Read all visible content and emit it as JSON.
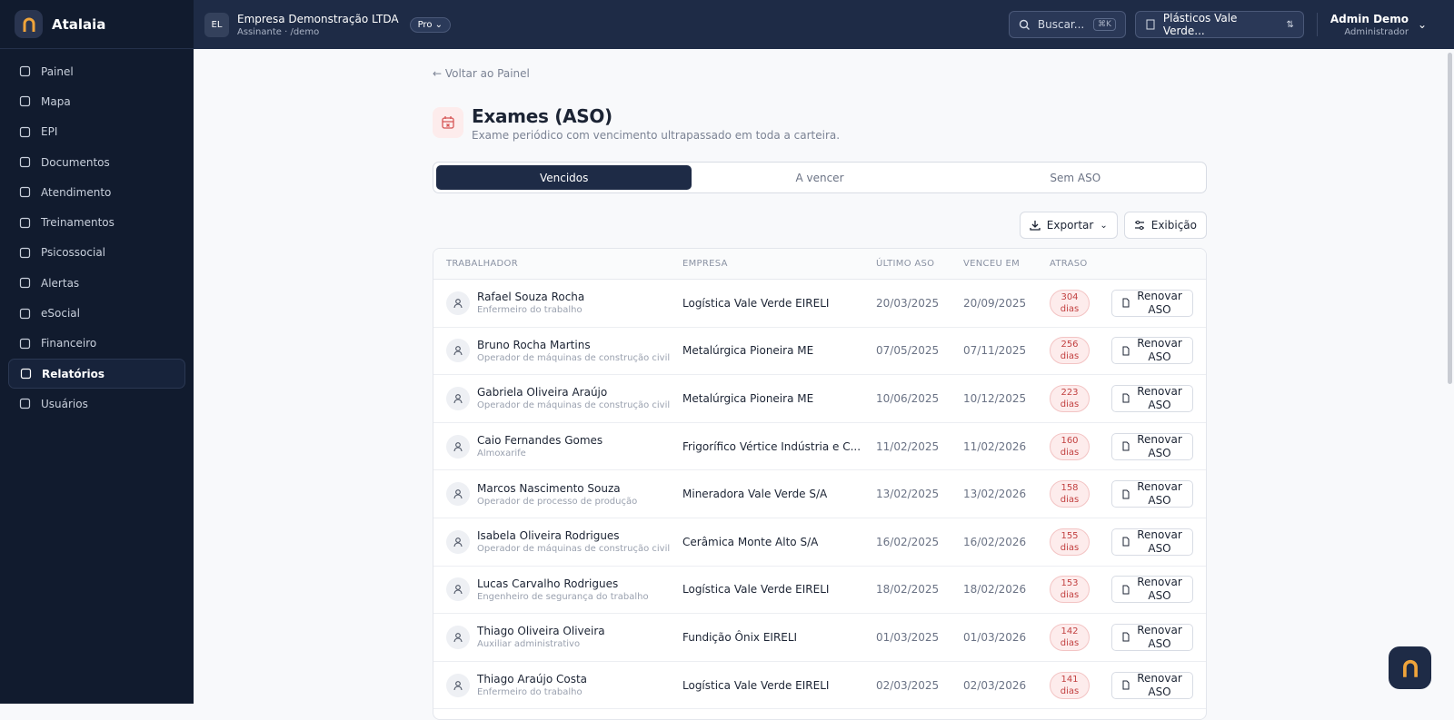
{
  "sidebar": {
    "brand": "Atalaia",
    "active": 10,
    "nav": [
      "Painel",
      "Mapa",
      "EPI",
      "Documentos",
      "Atendimento",
      "Treinamentos",
      "Psicossocial",
      "Alertas",
      "eSocial",
      "Financeiro",
      "Relatórios",
      "Usuários"
    ]
  },
  "topbar": {
    "initials": "EL",
    "company": "Empresa Demonstração LTDA",
    "company_sub": "Assinante · /demo",
    "plan": "Pro",
    "search": "Buscar...",
    "shortcut": "⌘K",
    "org": "Plásticos Vale Verde...",
    "user": "Admin Demo",
    "role": "Administrador"
  },
  "header": {
    "back": "Voltar ao Painel",
    "title": "Exames (ASO)",
    "subtitle": "Exame periódico com vencimento ultrapassado em toda a carteira."
  },
  "tabs": {
    "items": [
      "Vencidos",
      "A vencer",
      "Sem ASO"
    ],
    "active": 0
  },
  "toolbar": {
    "export": "Exportar",
    "view": "Exibição"
  },
  "table": {
    "columns": [
      "TRABALHADOR",
      "EMPRESA",
      "ÚLTIMO ASO",
      "VENCEU EM",
      "ATRASO"
    ],
    "action": "Renovar ASO",
    "rows": [
      {
        "name": "Rafael Souza Rocha",
        "role": "Enfermeiro do trabalho",
        "company": "Logística Vale Verde EIRELI",
        "last": "20/03/2025",
        "due": "20/09/2025",
        "delay": "304 dias"
      },
      {
        "name": "Bruno Rocha Martins",
        "role": "Operador de máquinas de construção civil",
        "company": "Metalúrgica Pioneira ME",
        "last": "07/05/2025",
        "due": "07/11/2025",
        "delay": "256 dias"
      },
      {
        "name": "Gabriela Oliveira Araújo",
        "role": "Operador de máquinas de construção civil",
        "company": "Metalúrgica Pioneira ME",
        "last": "10/06/2025",
        "due": "10/12/2025",
        "delay": "223 dias"
      },
      {
        "name": "Caio Fernandes Gomes",
        "role": "Almoxarife",
        "company": "Frigorífico Vértice Indústria e C...",
        "last": "11/02/2025",
        "due": "11/02/2026",
        "delay": "160 dias"
      },
      {
        "name": "Marcos Nascimento Souza",
        "role": "Operador de processo de produção",
        "company": "Mineradora Vale Verde S/A",
        "last": "13/02/2025",
        "due": "13/02/2026",
        "delay": "158 dias"
      },
      {
        "name": "Isabela Oliveira Rodrigues",
        "role": "Operador de máquinas de construção civil",
        "company": "Cerâmica Monte Alto S/A",
        "last": "16/02/2025",
        "due": "16/02/2026",
        "delay": "155 dias"
      },
      {
        "name": "Lucas Carvalho Rodrigues",
        "role": "Engenheiro de segurança do trabalho",
        "company": "Logística Vale Verde EIRELI",
        "last": "18/02/2025",
        "due": "18/02/2026",
        "delay": "153 dias"
      },
      {
        "name": "Thiago Oliveira Oliveira",
        "role": "Auxiliar administrativo",
        "company": "Fundição Ônix EIRELI",
        "last": "01/03/2025",
        "due": "01/03/2026",
        "delay": "142 dias"
      },
      {
        "name": "Thiago Araújo Costa",
        "role": "Enfermeiro do trabalho",
        "company": "Logística Vale Verde EIRELI",
        "last": "02/03/2025",
        "due": "02/03/2026",
        "delay": "141 dias"
      }
    ]
  }
}
